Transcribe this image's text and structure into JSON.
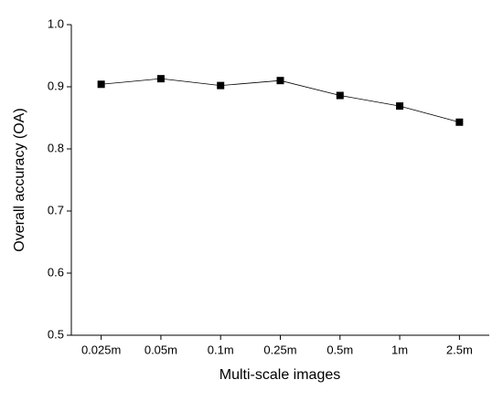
{
  "chart_data": {
    "type": "line",
    "x_label": "Multi-scale images",
    "y_label": "Overall accuracy (OA)",
    "categories": [
      "0.025m",
      "0.05m",
      "0.1m",
      "0.25m",
      "0.5m",
      "1m",
      "2.5m"
    ],
    "series": [
      {
        "color": "#000000",
        "values": [
          0.904,
          0.913,
          0.902,
          0.91,
          0.886,
          0.869,
          0.843
        ]
      }
    ],
    "ylim": [
      0.5,
      1.0
    ],
    "yticks": [
      0.5,
      0.6,
      0.7,
      0.8,
      0.9,
      {
        "value": 1.0,
        "label": "1.0"
      }
    ]
  }
}
